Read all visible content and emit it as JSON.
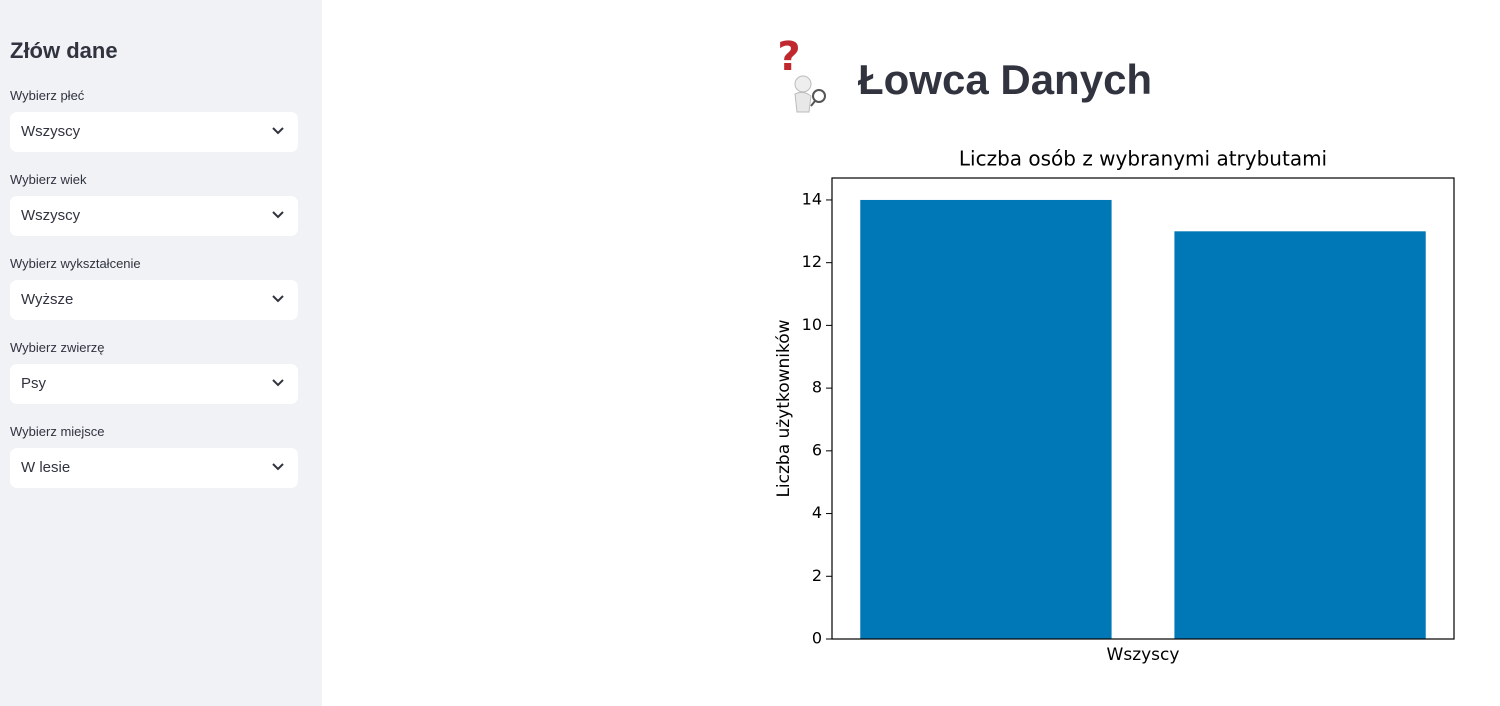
{
  "sidebar": {
    "title": "Złów dane",
    "filters": [
      {
        "label": "Wybierz płeć",
        "value": "Wszyscy"
      },
      {
        "label": "Wybierz wiek",
        "value": "Wszyscy"
      },
      {
        "label": "Wybierz wykształcenie",
        "value": "Wyższe"
      },
      {
        "label": "Wybierz zwierzę",
        "value": "Psy"
      },
      {
        "label": "Wybierz miejsce",
        "value": "W lesie"
      }
    ]
  },
  "header": {
    "title": "Łowca Danych"
  },
  "chart_data": {
    "type": "bar",
    "title": "Liczba osób z wybranymi atrybutami",
    "categories": [
      null,
      null
    ],
    "values": [
      14,
      13
    ],
    "color": "#0077b6",
    "xlabel": "Wszyscy",
    "ylabel": "Liczba użytkowników",
    "ylim": [
      0,
      14.7
    ],
    "yticks": [
      0,
      2,
      4,
      6,
      8,
      10,
      12,
      14
    ],
    "grid": false
  }
}
